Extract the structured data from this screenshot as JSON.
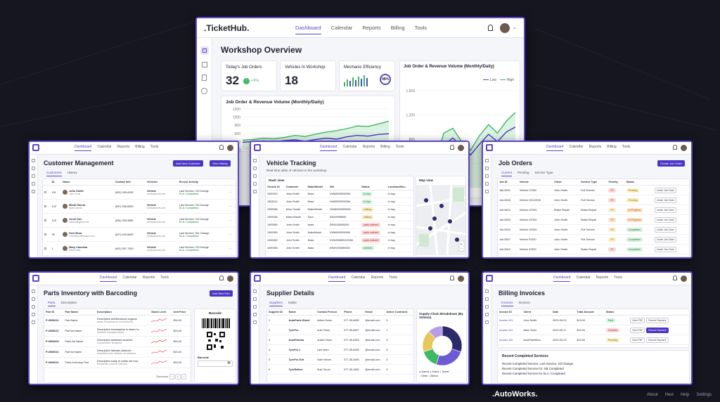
{
  "main": {
    "logo": ".TicketHub.",
    "nav": [
      "Dashboard",
      "Calendar",
      "Reports",
      "Billing",
      "Tools"
    ],
    "title": "Workshop Overview",
    "kpis": [
      {
        "label": "Today's Job Orders",
        "value": "32",
        "delta": "+5%"
      },
      {
        "label": "Vehicles In Workshop",
        "value": "18"
      },
      {
        "label": "Mechanic Efficiency",
        "value": "",
        "ring": "98%"
      }
    ],
    "chart_right_title": "Job Order & Revenue Volume (Monthly/Daily)",
    "chart_right_legend": [
      "Low",
      "High"
    ],
    "chart_left_title": "Job Order & Revenue Volume (Monthly/Daily)"
  },
  "chart_data": [
    {
      "type": "area",
      "title": "Job Order & Revenue Volume (Monthly/Daily)",
      "y_ticks": [
        "1200",
        "1000",
        "900",
        "600",
        "400",
        "200"
      ],
      "series": [
        {
          "values": [
            280,
            300,
            340,
            320,
            360,
            420,
            390,
            460,
            520,
            560,
            620,
            700,
            680,
            760,
            840
          ]
        },
        {
          "values": [
            220,
            240,
            260,
            230,
            270,
            290,
            250,
            300,
            340,
            310,
            380,
            420,
            400,
            450,
            470
          ]
        }
      ]
    },
    {
      "type": "area",
      "title": "Job Order & Revenue Volume (Monthly/Daily)",
      "y_ticks": [
        "1,600",
        "1,200",
        "800",
        "400",
        "100"
      ],
      "legend": [
        "Low",
        "High"
      ],
      "series": [
        {
          "name": "High",
          "values": [
            200,
            260,
            420,
            900,
            980,
            760,
            620,
            860,
            1040,
            900,
            1100,
            1240
          ]
        },
        {
          "name": "Low",
          "values": [
            160,
            220,
            360,
            700,
            820,
            680,
            540,
            720,
            880,
            760,
            920,
            1000
          ]
        }
      ]
    }
  ],
  "customer": {
    "nav": [
      "Dashboard",
      "Calendar",
      "Reports",
      "Billing",
      "Tools"
    ],
    "title": "Customer Management",
    "btn_add": "Add New Customer",
    "btn_history": "View History",
    "tabs": [
      "Customers",
      "History"
    ],
    "cols": [
      "ID",
      "Name",
      "Contact Info",
      "Vehicles",
      "Recent Activity"
    ],
    "rows": [
      {
        "id": "101",
        "name": "John Smith",
        "sub": "John Cirole",
        "phone": "(002) 335-6030",
        "veh": "Vehicle",
        "veh2": "vexslasement.com",
        "act": "Last Service: Oil Change",
        "sla": "SLA: Completed"
      },
      {
        "id": "102",
        "name": "Mindi Garcia",
        "sub": "Maria Garcia",
        "phone": "(057) 536-6553",
        "veh": "Vehicle",
        "veh2": "vexslasement.com",
        "act": "Last Service: Oil Change",
        "sla": "SLA: Completed"
      },
      {
        "id": "103",
        "name": "Jenni Doe",
        "sub": "callsexi@gmail.com",
        "phone": "(052) 335-3580",
        "veh": "Vehicle",
        "veh2": "vexslasement.com",
        "act": "Last Service: Oil Change",
        "sla": "SLA: Completed"
      },
      {
        "id": "96",
        "name": "Deel Mora",
        "sub": "cmsmeglou@ciasion.com",
        "phone": "(007) 643-6690",
        "veh": "Vehicle",
        "veh2": "vexslasement.com",
        "act": "Last Service: Sik Change",
        "sla": "SLA: Completed"
      },
      {
        "id": "1",
        "name": "Mary Canoloar",
        "sub": "Ritan Davis",
        "phone": "(002) 537-7000",
        "veh": "Vehicle",
        "veh2": "vexslasement.com",
        "act": "Last Service: Oil Change",
        "sla": "SLA: Completed"
      }
    ]
  },
  "vehicle": {
    "nav": [
      "Dashboard",
      "Calendar",
      "Reports",
      "Billing",
      "Tools"
    ],
    "title": "Vehicle Tracking",
    "subtitle": "Real-time table of vehicles in the workshop",
    "raw_view": "Raslr view",
    "map_view": "Map view",
    "cols": [
      "Vehicle ID",
      "Customer",
      "Make/Model",
      "VIN",
      "Status",
      "Location/Mec..."
    ],
    "rows": [
      {
        "id": "1990310",
        "cust": "John Smith",
        "make": "Mara",
        "vin": "VWM00995900M",
        "status": "in bay",
        "cls": "b-green",
        "loc": "in bay"
      },
      {
        "id": "1963012",
        "cust": "John Smith",
        "make": "Mara",
        "vin": "VWM00095900M",
        "status": "in bay",
        "cls": "b-green",
        "loc": "in bay"
      },
      {
        "id": "1956056",
        "cust": "Minn Gesde",
        "make": "Make/Model",
        "vin": "VWW00095900M",
        "status": "waiting",
        "cls": "b-yellow",
        "loc": "in bay"
      },
      {
        "id": "1905056",
        "cust": "Maria Basde",
        "make": "Sara",
        "vin": "S9039958850",
        "status": "waiting",
        "cls": "b-yellow",
        "loc": "in bay"
      },
      {
        "id": "1905950",
        "cust": "John Smith",
        "make": "Mara",
        "vin": "S900035095000",
        "status": "parts ordered",
        "cls": "b-red",
        "loc": "in bay"
      },
      {
        "id": "1969350",
        "cust": "John Smith",
        "make": "MakeModel",
        "vin": "VWM00095900M",
        "status": "parts ordered",
        "cls": "b-red",
        "loc": "in bay"
      },
      {
        "id": "1906350",
        "cust": "John Smith",
        "make": "Mara",
        "vin": "VGW0008591000M",
        "status": "parts ordered",
        "cls": "b-red",
        "loc": "in bay"
      },
      {
        "id": "1690956",
        "cust": "John Smith",
        "make": "Mara",
        "vin": "S9WV0058900M",
        "status": "ordered",
        "cls": "b-green",
        "loc": "in bay"
      }
    ]
  },
  "jobs": {
    "nav": [
      "Dashboard",
      "Calender",
      "Reports",
      "Billing",
      "Tools"
    ],
    "title": "Job Orders",
    "btn": "Create Job Order",
    "tabs": [
      "Current",
      "Pending",
      "Service Type"
    ],
    "cols": [
      "Job ID",
      "Vehicle",
      "Client",
      "Service Type",
      "Priority",
      "Status"
    ],
    "rows": [
      {
        "id": "Jab-5521",
        "veh": "Vehicle C2300",
        "client": "John Smith",
        "svc": "Full Service",
        "pri": "P1",
        "pcls": "b-red",
        "st": "Pending",
        "scls": "b-yellow",
        "act": "Unate Jab Order"
      },
      {
        "id": "Job-5506",
        "veh": "Vehicle DOL2E35",
        "client": "John Smith",
        "svc": "Full Service",
        "pri": "P1",
        "pcls": "b-red",
        "st": "Pending",
        "scls": "b-yellow",
        "act": "Unate Jab Order"
      },
      {
        "id": "Job-5624",
        "veh": "Vehicle UF300",
        "client": "Brake Repair",
        "svc": "Brake Repair",
        "pri": "P3",
        "pcls": "b-yellow",
        "st": "In Pregiens",
        "scls": "b-orange",
        "act": "Unate Jab Order"
      },
      {
        "id": "Job-5505",
        "veh": "Vehicle UF300",
        "client": "John Smith",
        "svc": "Brake Repair",
        "pri": "P2",
        "pcls": "b-orange",
        "st": "In Pregress",
        "scls": "b-orange",
        "act": "Unate Job Order"
      },
      {
        "id": "Job-5516",
        "veh": "Vehicle UF500",
        "client": "John Smith",
        "svc": "Full Service",
        "pri": "P3",
        "pcls": "b-yellow",
        "st": "Completed",
        "scls": "b-green",
        "act": "Unate Jab Order"
      },
      {
        "id": "Job-5557",
        "veh": "Vehicle 02300",
        "client": "John Smith",
        "svc": "Full Service",
        "pri": "P3",
        "pcls": "b-yellow",
        "st": "Completed",
        "scls": "b-green",
        "act": "Unate Job Order"
      },
      {
        "id": "Job-5516",
        "veh": "Vehicle 02300",
        "client": "John Smith",
        "svc": "Brake Repair",
        "pri": "P1",
        "pcls": "b-red",
        "st": "Completed",
        "scls": "b-green",
        "act": "Unate Jab Order"
      }
    ]
  },
  "parts": {
    "nav": [
      "Dashboard",
      "Calendar",
      "Reports",
      "Tools"
    ],
    "title": "Parts Inventory with Barcoding",
    "btn": "Add New Part",
    "tabs": [
      "Parts",
      "Description"
    ],
    "cols": [
      "Part ID",
      "Part Name",
      "Description",
      "Stock Level",
      "Unit Price"
    ],
    "rows": [
      {
        "id": "P-0000021",
        "name": "Part Name",
        "desc": "Description anfotiscamas anglone",
        "desc2": "assis crearavance evoluciones",
        "price": "$16.00"
      },
      {
        "id": "P-0000021",
        "name": "Part list Name",
        "desc": "Description esesaeplios in abeta ns",
        "desc2": "almetas casasperatore",
        "price": "$15.00"
      },
      {
        "id": "P-0000004",
        "name": "Parts list Name",
        "desc": "Description alaetiaae seoirkes",
        "desc2": "consectetur fecticess",
        "price": "$16.00"
      },
      {
        "id": "P-0000021",
        "name": "Part list Name",
        "desc": "Description laticatis calavoloi",
        "desc2": "evasilera suis sieisas nel parteas",
        "price": "$15.00"
      },
      {
        "id": "P-0000021",
        "name": "Parts Inventory Part",
        "desc": "Description sadip et ocitas del mac",
        "desc2": "elementis vossus sidenes",
        "price": "$15.00"
      }
    ],
    "barcode_title": "Barcode",
    "barcode_label": "Barcode",
    "pager": "Damcase"
  },
  "supplier": {
    "nav": [
      "Dashboard",
      "Calendar",
      "Reports",
      "Tools"
    ],
    "title": "Supplier Details",
    "tabs": [
      "Suppliers",
      "Inatite"
    ],
    "cols": [
      "Supplier ID",
      "Name",
      "Contact Person",
      "Phone",
      "Email",
      "Active Contracts"
    ],
    "rows": [
      {
        "id": "1",
        "name": "AutoParts Direct",
        "person": "Action Hown",
        "phone": "077-35-6455",
        "email": "@email.com",
        "ac": "5"
      },
      {
        "id": "2",
        "name": "TyreFro",
        "person": "Auto Team",
        "phone": "077-35-6557",
        "email": "@email.com",
        "ac": "1"
      },
      {
        "id": "3",
        "name": "AutoPartsto",
        "person": "Autlan Team",
        "phone": "077-35-6455",
        "email": "@email.com",
        "ac": "5"
      },
      {
        "id": "4",
        "name": "TyreFro t",
        "person": "Lain team",
        "phone": "077-35-6455",
        "email": "@email.com",
        "ac": "5"
      },
      {
        "id": "5",
        "name": "TyreFro Grit",
        "person": "Gale Hexon",
        "phone": "077-35-4455",
        "email": "@email.com",
        "ac": "5"
      },
      {
        "id": "6",
        "name": "TyreRetkce",
        "person": "Auto Seum",
        "phone": "077-35-4455",
        "email": "@email.com",
        "ac": "5"
      }
    ],
    "pie_title": "Supply Chain Breakdown (By Volume)",
    "pie_legend": [
      "Suema",
      "Sueca",
      "Tyreler",
      "Deele",
      "Altema"
    ]
  },
  "billing": {
    "nav": [
      "Dashboard",
      "Calendar",
      "Reports",
      "Tools"
    ],
    "title": "Billing Invoices",
    "tabs": [
      "Invoices",
      "Invoicss"
    ],
    "cols": [
      "Invoice ID",
      "Client",
      "Date",
      "Total Amount",
      "Status"
    ],
    "rows": [
      {
        "id": "Invoies 101",
        "client": "John Smith",
        "date": "2023-05-23",
        "amt": "$15.00",
        "st": "Paid",
        "scls": "b-green",
        "b1": "View PDF",
        "b2": "Record Payment",
        "pri": false
      },
      {
        "id": "Invoiss 101",
        "client": "Allan Team",
        "date": "2023-05-17",
        "amt": "$15.00",
        "st": "Overdue",
        "scls": "b-red",
        "b1": "View PDF",
        "b2": "Record Payment",
        "pri": true
      },
      {
        "id": "Invoies 100",
        "client": "AutoParteBico",
        "date": "2023-05-23",
        "amt": "$15.00",
        "st": "Pending",
        "scls": "b-yellow",
        "b1": "View PDF",
        "b2": "Record Payment",
        "pri": false
      }
    ],
    "recent_title": "Recent Completed Services",
    "recent": [
      "Recent Completed Service: Lost Service: Oil Change",
      "Recent Completed Service for: Sik Completed",
      "Recent Completed Service for SLA: Completed"
    ]
  },
  "footer": {
    "logo": ".AutoWorks.",
    "links": [
      "About",
      "Hest",
      "Help",
      "Settings"
    ]
  },
  "colors": {
    "accent": "#5b47c9",
    "bg": "#15161f",
    "green": "#3fb864",
    "purple": "#4b35c4"
  }
}
